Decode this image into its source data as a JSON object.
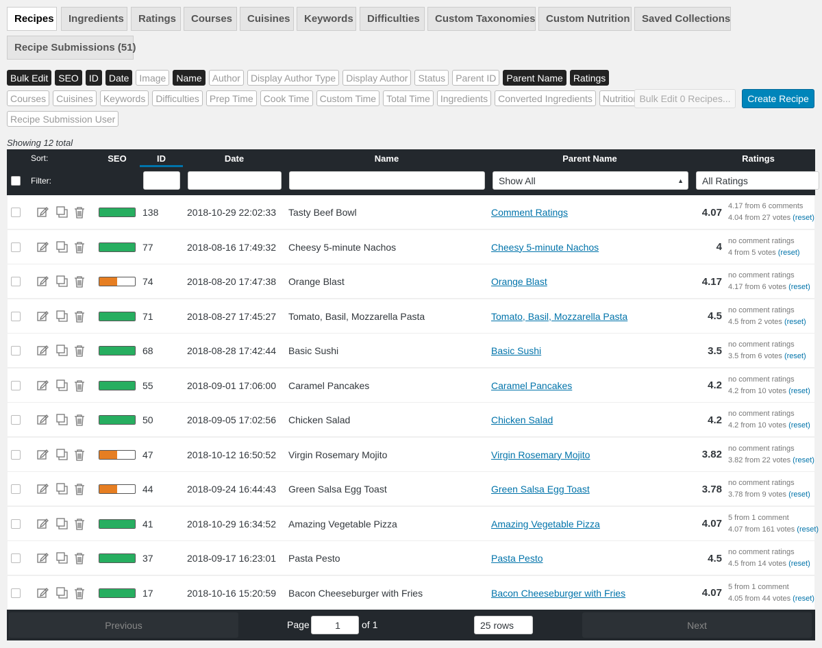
{
  "tabs": {
    "items": [
      "Recipes",
      "Ingredients",
      "Ratings",
      "Courses",
      "Cuisines",
      "Keywords",
      "Difficulties",
      "Custom Taxonomies",
      "Custom Nutrition",
      "Saved Collections",
      "Recipe Submissions (51)"
    ],
    "active": 0
  },
  "column_toggles": [
    [
      {
        "label": "Bulk Edit",
        "on": true
      },
      {
        "label": "SEO",
        "on": true
      },
      {
        "label": "ID",
        "on": true
      },
      {
        "label": "Date",
        "on": true
      },
      {
        "label": "Image",
        "on": false
      },
      {
        "label": "Name",
        "on": true
      },
      {
        "label": "Author",
        "on": false
      },
      {
        "label": "Display Author Type",
        "on": false
      },
      {
        "label": "Display Author",
        "on": false
      },
      {
        "label": "Status",
        "on": false
      },
      {
        "label": "Parent ID",
        "on": false
      },
      {
        "label": "Parent Name",
        "on": true
      },
      {
        "label": "Ratings",
        "on": true
      }
    ],
    [
      {
        "label": "Courses",
        "on": false
      },
      {
        "label": "Cuisines",
        "on": false
      },
      {
        "label": "Keywords",
        "on": false
      },
      {
        "label": "Difficulties",
        "on": false
      },
      {
        "label": "Prep Time",
        "on": false
      },
      {
        "label": "Cook Time",
        "on": false
      },
      {
        "label": "Custom Time",
        "on": false
      },
      {
        "label": "Total Time",
        "on": false
      },
      {
        "label": "Ingredients",
        "on": false
      },
      {
        "label": "Converted Ingredients",
        "on": false
      },
      {
        "label": "Nutrition",
        "on": false
      }
    ],
    [
      {
        "label": "Recipe Submission User",
        "on": false
      }
    ]
  ],
  "bulk_edit_button": "Bulk Edit 0 Recipes...",
  "create_button": "Create Recipe",
  "showing": "Showing 12 total",
  "header": {
    "sort": "Sort:",
    "filter": "Filter:",
    "columns": [
      "SEO",
      "ID",
      "Date",
      "Name",
      "Parent Name",
      "Ratings"
    ],
    "parent_filter": "Show All",
    "ratings_filter": "All Ratings"
  },
  "rows": [
    {
      "seo": "#27ae60",
      "id": "138",
      "date": "2018-10-29 22:02:33",
      "name": "Tasty Beef Bowl",
      "parent": "Comment Ratings",
      "rating": "4.07",
      "comments": "4.17 from 6 comments",
      "votes": "4.04 from 27 votes",
      "reset": "(reset)"
    },
    {
      "seo": "#27ae60",
      "id": "77",
      "date": "2018-08-16 17:49:32",
      "name": "Cheesy 5-minute Nachos",
      "parent": "Cheesy 5-minute Nachos",
      "rating": "4",
      "comments": "no comment ratings",
      "votes": "4 from 5 votes",
      "reset": "(reset)"
    },
    {
      "seo": "#e67e22",
      "id": "74",
      "date": "2018-08-20 17:47:38",
      "name": "Orange Blast",
      "parent": "Orange Blast",
      "rating": "4.17",
      "comments": "no comment ratings",
      "votes": "4.17 from 6 votes",
      "reset": "(reset)"
    },
    {
      "seo": "#27ae60",
      "id": "71",
      "date": "2018-08-27 17:45:27",
      "name": "Tomato, Basil, Mozzarella Pasta",
      "parent": "Tomato, Basil, Mozzarella Pasta",
      "rating": "4.5",
      "comments": "no comment ratings",
      "votes": "4.5 from 2 votes",
      "reset": "(reset)"
    },
    {
      "seo": "#27ae60",
      "id": "68",
      "date": "2018-08-28 17:42:44",
      "name": "Basic Sushi",
      "parent": "Basic Sushi",
      "rating": "3.5",
      "comments": "no comment ratings",
      "votes": "3.5 from 6 votes",
      "reset": "(reset)"
    },
    {
      "seo": "#27ae60",
      "id": "55",
      "date": "2018-09-01 17:06:00",
      "name": "Caramel Pancakes",
      "parent": "Caramel Pancakes",
      "rating": "4.2",
      "comments": "no comment ratings",
      "votes": "4.2 from 10 votes",
      "reset": "(reset)"
    },
    {
      "seo": "#27ae60",
      "id": "50",
      "date": "2018-09-05 17:02:56",
      "name": "Chicken Salad",
      "parent": "Chicken Salad",
      "rating": "4.2",
      "comments": "no comment ratings",
      "votes": "4.2 from 10 votes",
      "reset": "(reset)"
    },
    {
      "seo": "#e67e22",
      "id": "47",
      "date": "2018-10-12 16:50:52",
      "name": "Virgin Rosemary Mojito",
      "parent": "Virgin Rosemary Mojito",
      "rating": "3.82",
      "comments": "no comment ratings",
      "votes": "3.82 from 22 votes",
      "reset": "(reset)"
    },
    {
      "seo": "#e67e22",
      "id": "44",
      "date": "2018-09-24 16:44:43",
      "name": "Green Salsa Egg Toast",
      "parent": "Green Salsa Egg Toast",
      "rating": "3.78",
      "comments": "no comment ratings",
      "votes": "3.78 from 9 votes",
      "reset": "(reset)"
    },
    {
      "seo": "#27ae60",
      "id": "41",
      "date": "2018-10-29 16:34:52",
      "name": "Amazing Vegetable Pizza",
      "parent": "Amazing Vegetable Pizza",
      "rating": "4.07",
      "comments": "5 from 1 comment",
      "votes": "4.07 from 161 votes",
      "reset": "(reset)"
    },
    {
      "seo": "#27ae60",
      "id": "37",
      "date": "2018-09-17 16:23:01",
      "name": "Pasta Pesto",
      "parent": "Pasta Pesto",
      "rating": "4.5",
      "comments": "no comment ratings",
      "votes": "4.5 from 14 votes",
      "reset": "(reset)"
    },
    {
      "seo": "#27ae60",
      "id": "17",
      "date": "2018-10-16 15:20:59",
      "name": "Bacon Cheeseburger with Fries",
      "parent": "Bacon Cheeseburger with Fries",
      "rating": "4.07",
      "comments": "5 from 1 comment",
      "votes": "4.05 from 44 votes",
      "reset": "(reset)"
    }
  ],
  "footer": {
    "previous": "Previous",
    "page": "Page",
    "page_input": "1",
    "of": "of 1",
    "rows_select": "25 rows",
    "next": "Next"
  }
}
